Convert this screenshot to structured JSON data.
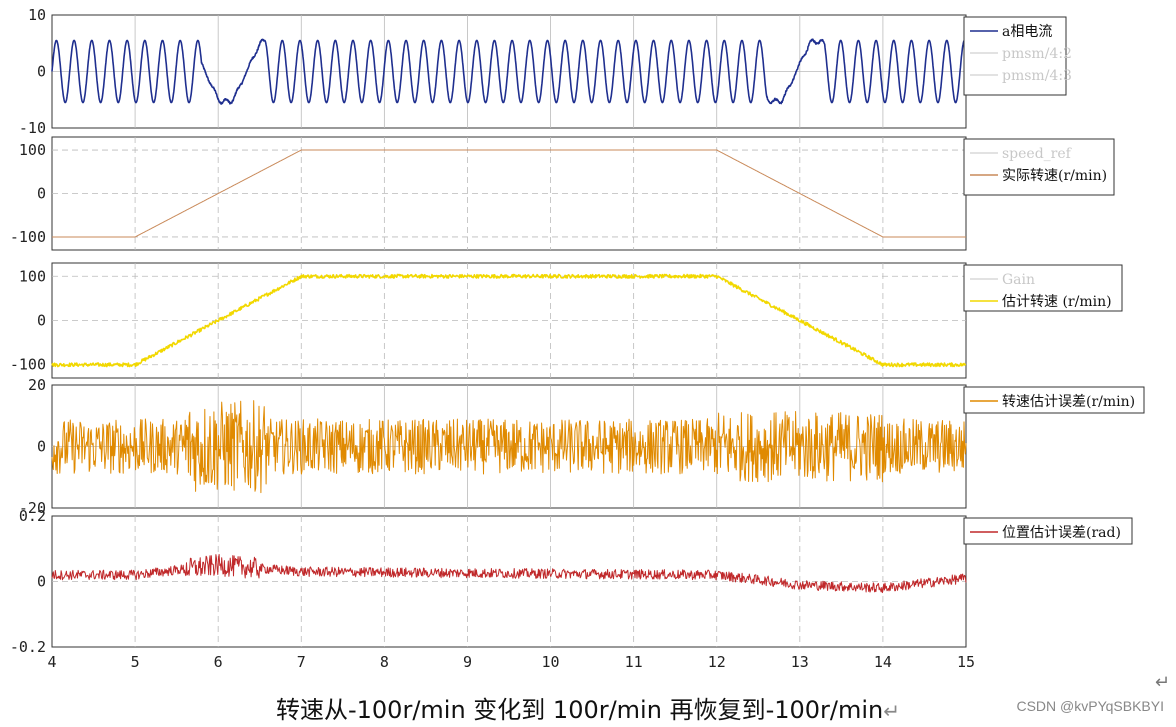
{
  "caption": "转速从-100r/min 变化到 100r/min 再恢复到-100r/min",
  "caption_mark": "↵",
  "corner_mark": "↵",
  "watermark": "CSDN @kvPYqSBKBYI",
  "chart_data": [
    {
      "type": "line",
      "xlim": [
        4,
        15
      ],
      "ylim": [
        -10,
        10
      ],
      "yticks": [
        "10",
        "0",
        "-10"
      ],
      "legend": [
        "a相电流",
        "pmsm/4:2",
        "pmsm/4:3"
      ],
      "legend_position": "right",
      "series": [
        {
          "name": "a相电流",
          "color": "#1f2f8f",
          "description_points": {
            "amplitude": 5.5,
            "segments": [
              [
                4,
                5.8,
                "fast"
              ],
              [
                5.8,
                6.55,
                "slow-distorted"
              ],
              [
                6.55,
                12.6,
                "fast"
              ],
              [
                12.6,
                13.3,
                "slow-distorted"
              ],
              [
                13.3,
                15,
                "fast"
              ]
            ]
          }
        }
      ]
    },
    {
      "type": "line",
      "xlim": [
        4,
        15
      ],
      "ylim": [
        -130,
        130
      ],
      "yticks": [
        "100",
        "0",
        "-100"
      ],
      "legend": [
        "speed_ref",
        "实际转速(r/min)"
      ],
      "legend_position": "right",
      "grid": true,
      "series": [
        {
          "name": "实际转速(r/min)",
          "color": "#c98a5a",
          "x": [
            4,
            5,
            7,
            12,
            14,
            15
          ],
          "y": [
            -100,
            -100,
            100,
            100,
            -100,
            -100
          ]
        }
      ]
    },
    {
      "type": "line",
      "xlim": [
        4,
        15
      ],
      "ylim": [
        -130,
        130
      ],
      "yticks": [
        "100",
        "0",
        "-100"
      ],
      "legend": [
        "Gain",
        "估计转速 (r/min)"
      ],
      "legend_position": "right",
      "grid": true,
      "series": [
        {
          "name": "估计转速 (r/min)",
          "color": "#f2d800",
          "x": [
            4,
            5,
            7,
            12,
            14,
            15
          ],
          "y": [
            -100,
            -100,
            100,
            100,
            -100,
            -100
          ],
          "noise": 4
        }
      ]
    },
    {
      "type": "line",
      "xlim": [
        4,
        15
      ],
      "ylim": [
        -20,
        20
      ],
      "yticks": [
        "20",
        "0",
        "-20"
      ],
      "legend": [
        "转速估计误差(r/min)"
      ],
      "legend_position": "right",
      "series": [
        {
          "name": "转速估计误差(r/min)",
          "color": "#e08a00",
          "mean": 0,
          "noise": 10
        }
      ]
    },
    {
      "type": "line",
      "xlim": [
        4,
        15
      ],
      "ylim": [
        -0.2,
        0.2
      ],
      "yticks": [
        "0.2",
        "0",
        "-0.2"
      ],
      "xticks": [
        "4",
        "5",
        "6",
        "7",
        "8",
        "9",
        "10",
        "11",
        "12",
        "13",
        "14",
        "15"
      ],
      "legend": [
        "位置估计误差(rad)"
      ],
      "legend_position": "right",
      "grid": true,
      "series": [
        {
          "name": "位置估计误差(rad)",
          "color": "#c0282a",
          "x": [
            4,
            5,
            6,
            7,
            12,
            13,
            14,
            15
          ],
          "y": [
            0.02,
            0.02,
            0.05,
            0.03,
            0.02,
            -0.01,
            -0.02,
            0.01
          ],
          "noise": 0.015
        }
      ]
    }
  ]
}
